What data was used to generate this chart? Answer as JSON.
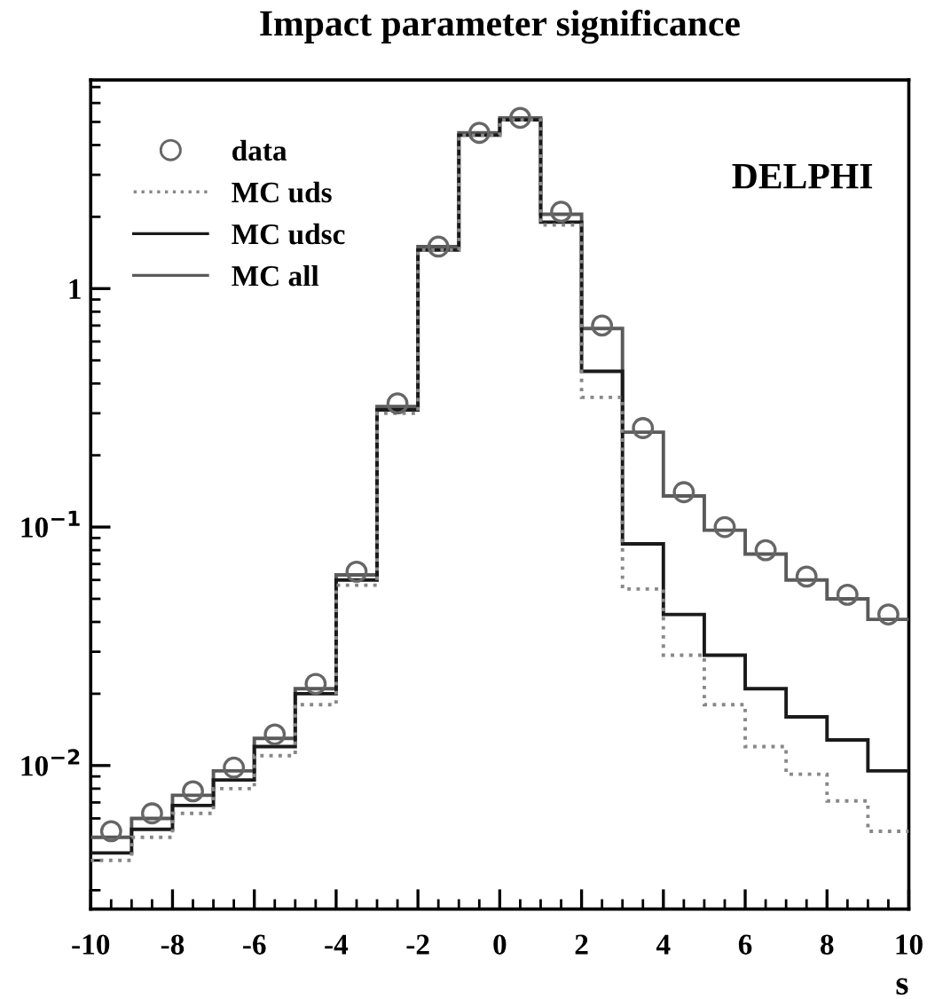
{
  "chart_data": {
    "type": "histogram",
    "title": "Impact parameter significance",
    "xlabel": "s",
    "bins": [
      -10,
      -9,
      -8,
      -7,
      -6,
      -5,
      -4,
      -3,
      -2,
      -1,
      0,
      1,
      2,
      3,
      4,
      5,
      6,
      7,
      8,
      9,
      10
    ],
    "series": [
      {
        "name": "data",
        "type": "scatter",
        "marker": "circle",
        "color": "#666666",
        "x": [
          -9.5,
          -8.5,
          -7.5,
          -6.5,
          -5.5,
          -4.5,
          -3.5,
          -2.5,
          -1.5,
          -0.5,
          0.5,
          1.5,
          2.5,
          3.5,
          4.5,
          5.5,
          6.5,
          7.5,
          8.5,
          9.5
        ],
        "values": [
          0.0053,
          0.0063,
          0.0078,
          0.0098,
          0.0135,
          0.022,
          0.065,
          0.33,
          1.5,
          4.5,
          5.2,
          2.1,
          0.7,
          0.26,
          0.14,
          0.1,
          0.08,
          0.062,
          0.052,
          0.043
        ]
      },
      {
        "name": "MC uds",
        "color": "#888888",
        "line_style": "dotted",
        "values": [
          0.004,
          0.005,
          0.0063,
          0.008,
          0.011,
          0.018,
          0.057,
          0.3,
          1.45,
          4.4,
          5.1,
          1.85,
          0.35,
          0.055,
          0.029,
          0.018,
          0.012,
          0.0092,
          0.0071,
          0.0053
        ]
      },
      {
        "name": "MC udsc",
        "color": "#1a1a1a",
        "line_style": "solid",
        "values": [
          0.0043,
          0.0054,
          0.0068,
          0.0087,
          0.012,
          0.02,
          0.06,
          0.31,
          1.45,
          4.4,
          5.1,
          1.9,
          0.45,
          0.085,
          0.043,
          0.029,
          0.021,
          0.016,
          0.0128,
          0.0095
        ]
      },
      {
        "name": "MC all",
        "color": "#5a5a5a",
        "line_style": "solid",
        "values": [
          0.005,
          0.006,
          0.0075,
          0.0095,
          0.013,
          0.021,
          0.063,
          0.32,
          1.5,
          4.5,
          5.2,
          2.05,
          0.68,
          0.25,
          0.135,
          0.097,
          0.077,
          0.06,
          0.05,
          0.041
        ]
      }
    ],
    "log": "y",
    "xlim": [
      -10,
      10
    ],
    "ylim": [
      0.0025,
      7.5
    ],
    "xticks": [
      -10,
      -8,
      -6,
      -4,
      -2,
      0,
      2,
      4,
      6,
      8,
      10
    ],
    "yticks": [
      {
        "value": 0.01,
        "label": "10$^{−2}$"
      },
      {
        "value": 0.1,
        "label": "10$^{−1}$"
      },
      {
        "value": 1,
        "label": "1"
      }
    ],
    "legend": "top left",
    "grid": false,
    "annotations": [
      "DELPHI"
    ]
  }
}
